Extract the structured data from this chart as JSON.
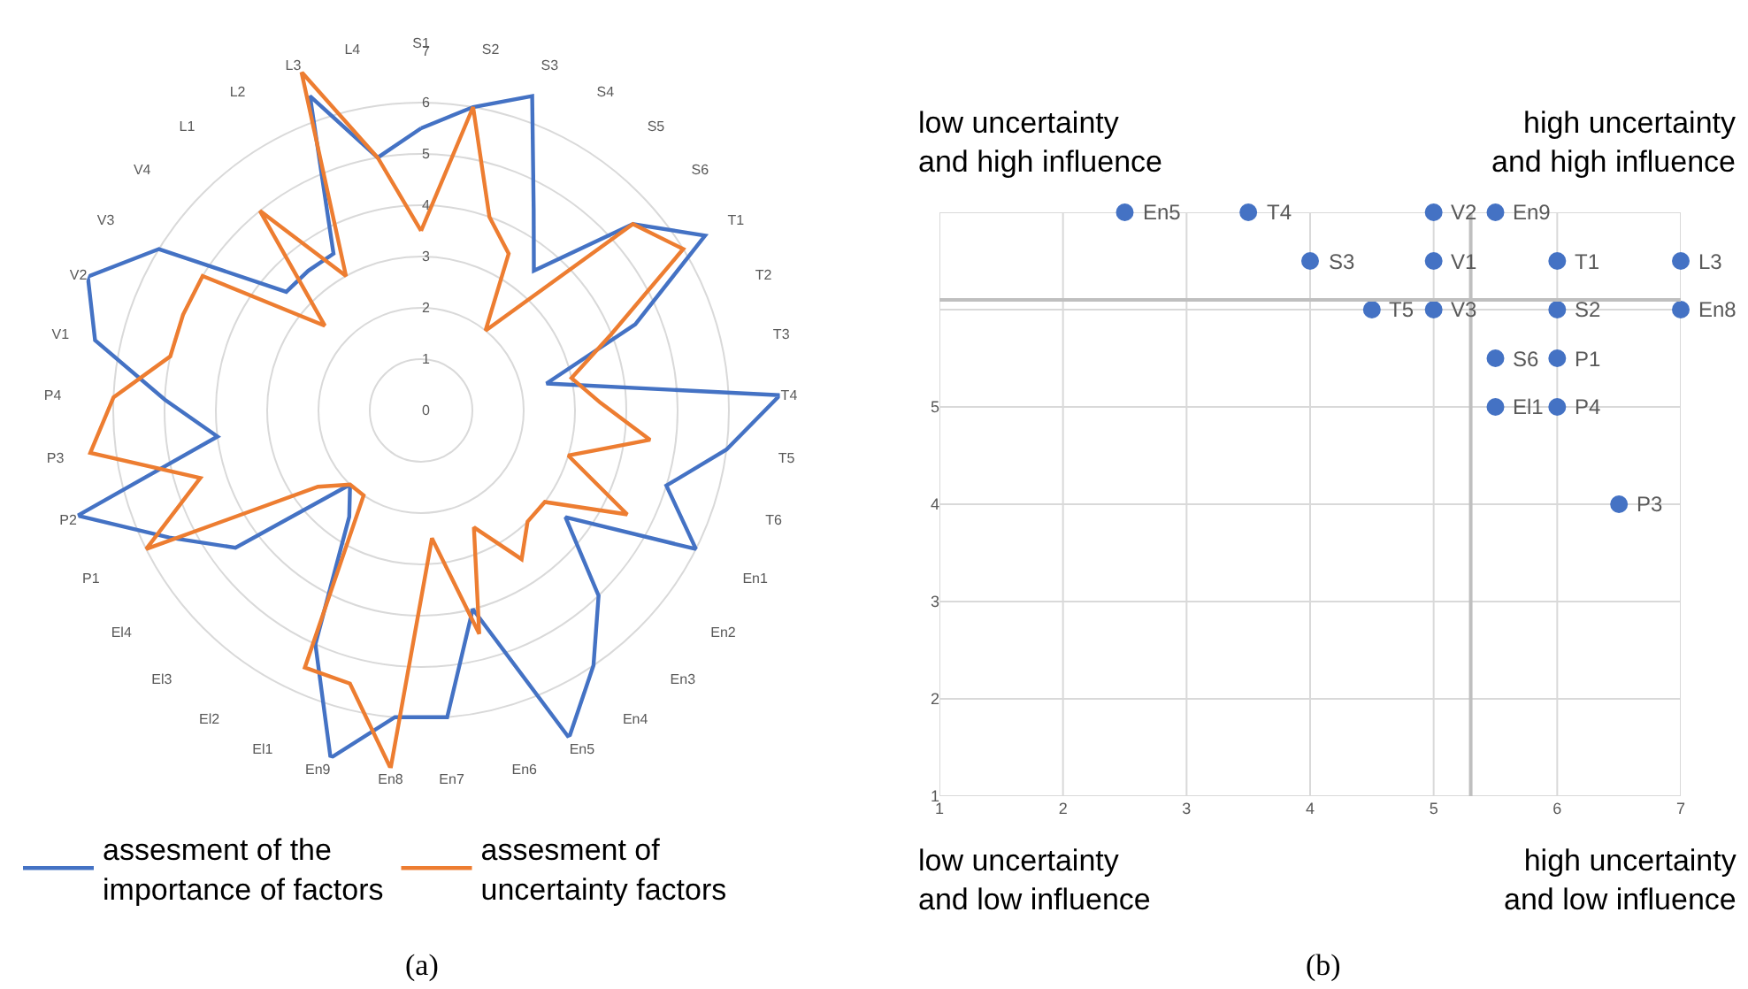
{
  "chart_data": [
    {
      "type": "radar",
      "categories": [
        "S1",
        "S2",
        "S3",
        "S4",
        "S5",
        "S6",
        "T1",
        "T2",
        "T3",
        "T4",
        "T5",
        "T6",
        "En1",
        "En2",
        "En3",
        "En4",
        "En5",
        "En6",
        "En7",
        "En8",
        "En9",
        "El1",
        "El2",
        "El3",
        "El4",
        "P1",
        "P2",
        "P3",
        "P4",
        "V1",
        "V2",
        "V3",
        "V4",
        "L1",
        "L2",
        "L3",
        "L4"
      ],
      "series": [
        {
          "name": "assesment of the importance of factors",
          "color": "#4472c4",
          "values": [
            5.5,
            6,
            6.5,
            4.5,
            3.5,
            5.5,
            6.5,
            4.5,
            2.5,
            7,
            6,
            5,
            6,
            3.5,
            5,
            6,
            7,
            4,
            6,
            6,
            7,
            5,
            2.5,
            2,
            4.5,
            5.5,
            7,
            4,
            5,
            6.5,
            7,
            6,
            3.5,
            3.5,
            3.5,
            6.5,
            5
          ]
        },
        {
          "name": "assesment of uncertainty factors",
          "color": "#ed7d31",
          "values": [
            3.5,
            6,
            4,
            3.5,
            2,
            5.5,
            6,
            4,
            3,
            3.5,
            4.5,
            3,
            4.5,
            3,
            3,
            3.5,
            2.5,
            4.5,
            2.5,
            7,
            5.5,
            5.5,
            2,
            2,
            2.5,
            6,
            4.5,
            6.5,
            6,
            5,
            5,
            5,
            2.5,
            5,
            3,
            7,
            5
          ]
        }
      ],
      "ylim": [
        0,
        7
      ],
      "yticks": [
        0,
        1,
        2,
        3,
        4,
        5,
        6,
        7
      ],
      "grid": "y",
      "legend": "bottom",
      "marker": "none",
      "line_style": "solid",
      "annotations": [
        "(a)"
      ]
    },
    {
      "type": "scatter",
      "x": [
        2.5,
        3.5,
        5,
        5.5,
        4,
        5,
        6,
        7,
        4.5,
        5,
        6,
        7,
        5.5,
        6,
        5.5,
        6,
        6.5
      ],
      "values": [
        7,
        7,
        7,
        7,
        6.5,
        6.5,
        6.5,
        6.5,
        6,
        6,
        6,
        6,
        5.5,
        5.5,
        5,
        5,
        4
      ],
      "color": "#4472c4",
      "marker": "circle",
      "xlim": [
        1,
        7
      ],
      "ylim": [
        1,
        7
      ],
      "xticks": [
        1,
        2,
        3,
        4,
        5,
        6,
        7
      ],
      "yticks": [
        1,
        2,
        3,
        4,
        5,
        {
          "value": 6,
          "label": null
        },
        {
          "value": 7,
          "label": null
        }
      ],
      "grid": true,
      "ref_lines": [
        {
          "axis": "x",
          "value": 5.3,
          "color": "#bfbfbf"
        },
        {
          "axis": "y",
          "value": 6.1,
          "color": "#bfbfbf"
        }
      ],
      "annotations": [
        "low uncertainty\nand high influence",
        "high uncertainty\nand high influence",
        "low uncertainty\nand low influence",
        "high uncertainty\nand low influence",
        "(b)",
        {
          "text": "En5",
          "x": 2.5,
          "y": 7
        },
        {
          "text": "T4",
          "x": 3.5,
          "y": 7
        },
        {
          "text": "V2",
          "x": 5,
          "y": 7
        },
        {
          "text": "En9",
          "x": 5.5,
          "y": 7
        },
        {
          "text": "S3",
          "x": 4,
          "y": 6.5
        },
        {
          "text": "V1",
          "x": 5,
          "y": 6.5
        },
        {
          "text": "T1",
          "x": 6,
          "y": 6.5
        },
        {
          "text": "L3",
          "x": 7,
          "y": 6.5
        },
        {
          "text": "T5",
          "x": 4.5,
          "y": 6
        },
        {
          "text": "V3",
          "x": 5,
          "y": 6
        },
        {
          "text": "S2",
          "x": 6,
          "y": 6
        },
        {
          "text": "En8",
          "x": 7,
          "y": 6
        },
        {
          "text": "S6",
          "x": 5.5,
          "y": 5.5
        },
        {
          "text": "P1",
          "x": 6,
          "y": 5.5
        },
        {
          "text": "El1",
          "x": 5.5,
          "y": 5
        },
        {
          "text": "P4",
          "x": 6,
          "y": 5
        },
        {
          "text": "P3",
          "x": 6.5,
          "y": 4
        }
      ]
    }
  ]
}
